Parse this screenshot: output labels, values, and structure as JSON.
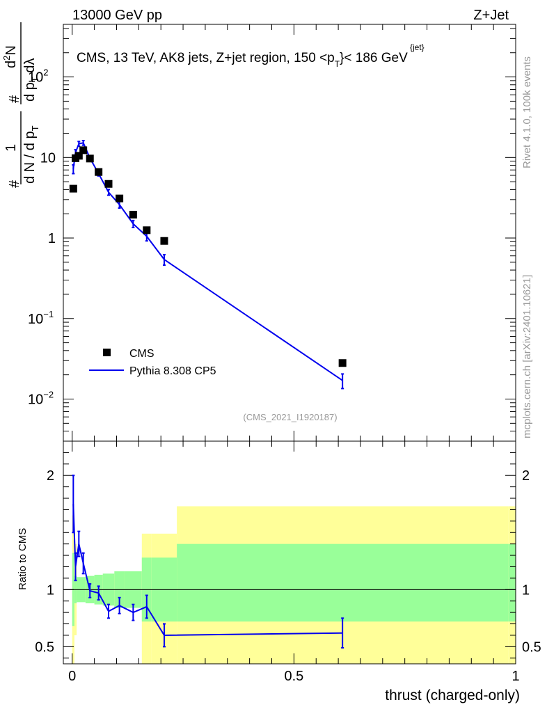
{
  "header": {
    "left": "13000 GeV pp",
    "right": "Z+Jet"
  },
  "side": {
    "rivet": "Rivet 4.1.0,  100k events",
    "mcplots": "mcplots.cern.ch [arXiv:2401.10621]"
  },
  "watermark": "(CMS_2021_I1920187)",
  "colors": {
    "cms": "#000000",
    "pythia": "#0000ee",
    "band_inner": "#99ff99",
    "band_outer": "#ffff99"
  },
  "chart_data": [
    {
      "type": "scatter",
      "panel": "main",
      "title_prefix": "CMS, 13 TeV, AK8 jets, Z+jet region, 150 <p",
      "title_sup": "{jet}",
      "title_sub": "T",
      "title_suffix": "}< 186 GeV",
      "ylabel": {
        "frac1_num": "1",
        "frac1_den_a": "d N / d p",
        "frac1_den_sub": "T",
        "frac2_num_a": "d",
        "frac2_num_sup": "2",
        "frac2_num_b": "N",
        "frac2_den_a": "d p",
        "frac2_den_sub": "T",
        "frac2_den_b": " dλ",
        "hash": "#"
      },
      "yscale": "log",
      "ylim": [
        0.003,
        450
      ],
      "xlim": [
        -0.02,
        1.0
      ],
      "yticks": [
        {
          "v": 0.01,
          "base": "10",
          "exp": "−2"
        },
        {
          "v": 0.1,
          "base": "10",
          "exp": "−1"
        },
        {
          "v": 1,
          "base": "1",
          "exp": ""
        },
        {
          "v": 10,
          "base": "10",
          "exp": ""
        },
        {
          "v": 100,
          "base": "10",
          "exp": "2"
        }
      ],
      "legend": {
        "position": "lower-left",
        "entries": [
          "CMS",
          "Pythia 8.308 CP5"
        ]
      },
      "series": [
        {
          "name": "CMS",
          "style": "markers",
          "x": [
            0.0025,
            0.0075,
            0.015,
            0.025,
            0.04,
            0.0595,
            0.082,
            0.1065,
            0.1375,
            0.168,
            0.2075,
            0.6095
          ],
          "y": [
            4.1,
            9.8,
            10.5,
            12.3,
            9.7,
            6.6,
            4.7,
            3.1,
            1.95,
            1.25,
            0.92,
            0.028
          ]
        },
        {
          "name": "Pythia 8.308 CP5",
          "style": "line",
          "x": [
            0.0025,
            0.0075,
            0.015,
            0.025,
            0.04,
            0.0595,
            0.082,
            0.1065,
            0.1375,
            0.168,
            0.2075,
            0.6095
          ],
          "y": [
            7.2,
            11.5,
            14.8,
            15.2,
            9.8,
            6.3,
            3.7,
            2.6,
            1.5,
            1.05,
            0.54,
            0.017
          ],
          "err": [
            0.9,
            1.0,
            1.0,
            1.0,
            0.6,
            0.4,
            0.3,
            0.25,
            0.15,
            0.13,
            0.08,
            0.0035
          ]
        }
      ]
    },
    {
      "type": "line",
      "panel": "ratio",
      "ylabel": "Ratio to CMS",
      "xlabel": "thrust (charged-only)",
      "xlim": [
        -0.02,
        1.0
      ],
      "ylim": [
        0.35,
        2.3
      ],
      "yticks": [
        0.5,
        1,
        2
      ],
      "xticks": [
        0,
        0.5,
        1
      ],
      "reference": 1,
      "bins": [
        0,
        0.005,
        0.01,
        0.02,
        0.03,
        0.05,
        0.069,
        0.095,
        0.118,
        0.157,
        0.179,
        0.236,
        0.983,
        1.0
      ],
      "band_inner": {
        "lo": [
          0.68,
          0.88,
          0.89,
          0.89,
          0.88,
          0.87,
          0.86,
          0.84,
          0.84,
          0.72,
          0.72,
          0.72,
          0.72
        ],
        "hi": [
          1.32,
          1.12,
          1.11,
          1.11,
          1.12,
          1.13,
          1.14,
          1.16,
          1.16,
          1.28,
          1.28,
          1.4,
          1.4
        ]
      },
      "band_outer": {
        "lo": [
          0.35,
          0.6,
          0.91,
          0.91,
          0.9,
          0.89,
          0.88,
          0.86,
          0.86,
          0.35,
          0.35,
          0.35,
          0.35
        ],
        "hi": [
          1.65,
          1.4,
          1.09,
          1.09,
          1.1,
          1.11,
          1.12,
          1.14,
          1.14,
          1.49,
          1.49,
          1.73,
          1.73
        ]
      },
      "x": [
        0.0025,
        0.0075,
        0.015,
        0.025,
        0.04,
        0.0595,
        0.082,
        0.1065,
        0.1375,
        0.168,
        0.2075,
        0.6095
      ],
      "y": [
        1.75,
        1.2,
        1.4,
        1.23,
        0.99,
        0.97,
        0.81,
        0.86,
        0.8,
        0.85,
        0.6,
        0.62
      ],
      "err": [
        0.25,
        0.12,
        0.11,
        0.09,
        0.06,
        0.06,
        0.06,
        0.07,
        0.07,
        0.1,
        0.1,
        0.13
      ]
    }
  ]
}
